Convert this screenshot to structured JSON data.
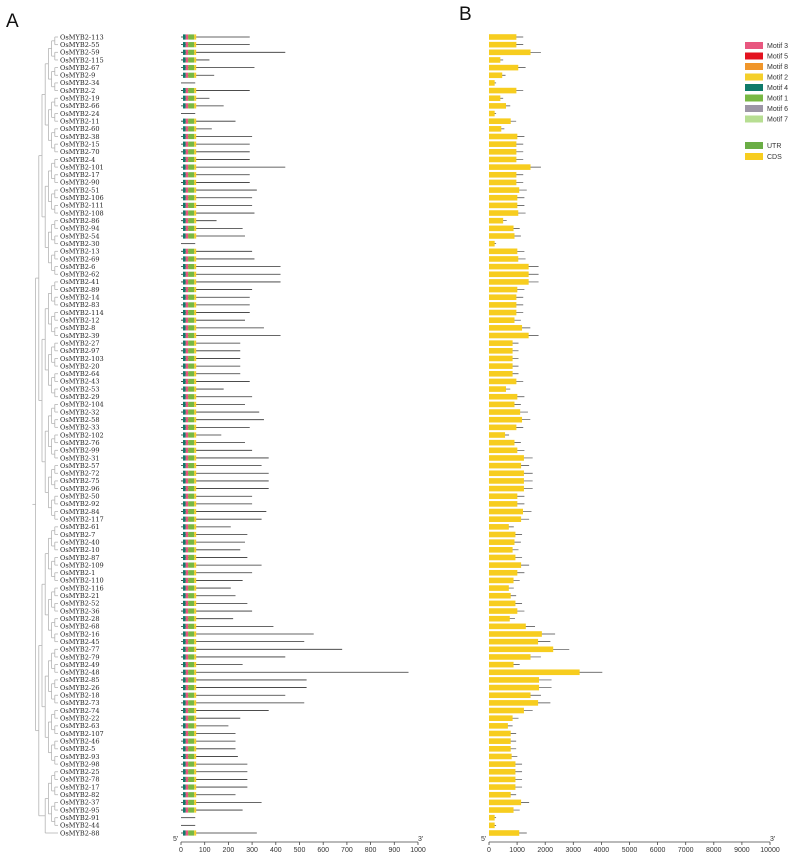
{
  "panels": {
    "a_label": "A",
    "b_label": "B"
  },
  "genes": [
    "OsMYB2-113",
    "OsMYB2-55",
    "OsMYB2-59",
    "OsMYB2-115",
    "OsMYB2-67",
    "OsMYB2-9",
    "OsMYB2-34",
    "OsMYB2-2",
    "OsMYB2-19",
    "OsMYB2-66",
    "OsMYB2-24",
    "OsMYB2-11",
    "OsMYB2-60",
    "OsMYB2-38",
    "OsMYB2-15",
    "OsMYB2-70",
    "OsMYB2-4",
    "OsMYB2-101",
    "OsMYB2-17",
    "OsMYB2-90",
    "OsMYB2-51",
    "OsMYB2-106",
    "OsMYB2-111",
    "OsMYB2-108",
    "OsMYB2-86",
    "OsMYB2-94",
    "OsMYB2-54",
    "OsMYB2-30",
    "OsMYB2-13",
    "OsMYB2-69",
    "OsMYB2-6",
    "OsMYB2-62",
    "OsMYB2-41",
    "OsMYB2-89",
    "OsMYB2-14",
    "OsMYB2-83",
    "OsMYB2-114",
    "OsMYB2-12",
    "OsMYB2-8",
    "OsMYB2-39",
    "OsMYB2-27",
    "OsMYB2-97",
    "OsMYB2-103",
    "OsMYB2-20",
    "OsMYB2-64",
    "OsMYB2-43",
    "OsMYB2-53",
    "OsMYB2-29",
    "OsMYB2-104",
    "OsMYB2-32",
    "OsMYB2-58",
    "OsMYB2-33",
    "OsMYB2-102",
    "OsMYB2-76",
    "OsMYB2-99",
    "OsMYB2-31",
    "OsMYB2-57",
    "OsMYB2-72",
    "OsMYB2-75",
    "OsMYB2-96",
    "OsMYB2-50",
    "OsMYB2-92",
    "OsMYB2-84",
    "OsMYB2-117",
    "OsMYB2-61",
    "OsMYB2-7",
    "OsMYB2-40",
    "OsMYB2-10",
    "OsMYB2-87",
    "OsMYB2-109",
    "OsMYB2-1",
    "OsMYB2-110",
    "OsMYB2-116",
    "OsMYB2-21",
    "OsMYB2-52",
    "OsMYB2-36",
    "OsMYB2-28",
    "OsMYB2-68",
    "OsMYB2-16",
    "OsMYB2-45",
    "OsMYB2-77",
    "OsMYB2-79",
    "OsMYB2-49",
    "OsMYB2-48",
    "OsMYB2-85",
    "OsMYB2-26",
    "OsMYB2-18",
    "OsMYB2-73",
    "OsMYB2-74",
    "OsMYB2-22",
    "OsMYB2-63",
    "OsMYB2-107",
    "OsMYB2-46",
    "OsMYB2-5",
    "OsMYB2-93",
    "OsMYB2-98",
    "OsMYB2-25",
    "OsMYB2-78",
    "OsMYB2-17",
    "OsMYB2-82",
    "OsMYB2-37",
    "OsMYB2-95",
    "OsMYB2-91",
    "OsMYB2-44",
    "OsMYB2-88"
  ],
  "motif_axis": {
    "ticks": [
      0,
      100,
      200,
      300,
      400,
      500,
      600,
      700,
      800,
      900,
      1000
    ],
    "start_label": "5'",
    "end_label": "3'"
  },
  "gene_axis": {
    "ticks": [
      0,
      1000,
      2000,
      3000,
      4000,
      5000,
      6000,
      7000,
      8000,
      9000,
      10000
    ],
    "start_label": "5'",
    "end_label": "3'"
  },
  "motif_legend": [
    {
      "name": "Motif 3",
      "color": "#e8577f"
    },
    {
      "name": "Motif 5",
      "color": "#e3121f"
    },
    {
      "name": "Motif 8",
      "color": "#f0962b"
    },
    {
      "name": "Motif 2",
      "color": "#f4cf2a"
    },
    {
      "name": "Motif 4",
      "color": "#0f7a69"
    },
    {
      "name": "Motif 1",
      "color": "#78b843"
    },
    {
      "name": "Motif 6",
      "color": "#9d96a6"
    },
    {
      "name": "Motif 7",
      "color": "#b7de92"
    }
  ],
  "structure_legend": [
    {
      "name": "UTR",
      "color": "#6aad45"
    },
    {
      "name": "CDS",
      "color": "#f7cd1f"
    }
  ],
  "protein_lengths": [
    290,
    290,
    440,
    120,
    310,
    140,
    60,
    290,
    120,
    180,
    60,
    230,
    130,
    300,
    290,
    290,
    290,
    440,
    290,
    290,
    320,
    300,
    300,
    310,
    150,
    260,
    270,
    60,
    300,
    310,
    420,
    420,
    420,
    300,
    290,
    290,
    290,
    270,
    350,
    420,
    250,
    250,
    250,
    250,
    250,
    290,
    180,
    300,
    270,
    330,
    350,
    290,
    170,
    270,
    300,
    370,
    340,
    370,
    370,
    370,
    300,
    300,
    360,
    340,
    210,
    280,
    270,
    250,
    280,
    340,
    300,
    260,
    210,
    230,
    280,
    300,
    220,
    390,
    560,
    520,
    680,
    440,
    260,
    960,
    530,
    530,
    440,
    520,
    370,
    250,
    200,
    230,
    230,
    230,
    240,
    280,
    280,
    280,
    280,
    230,
    340,
    260,
    60,
    60,
    320
  ]
}
